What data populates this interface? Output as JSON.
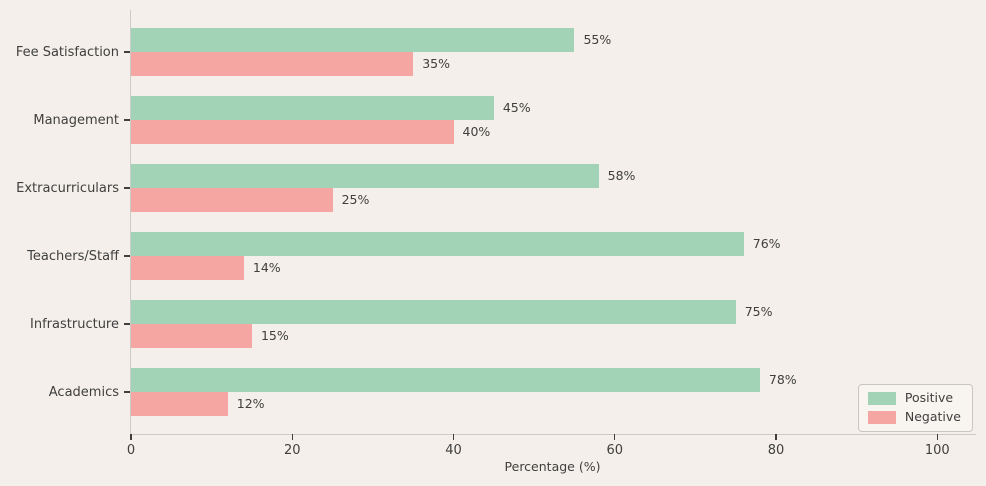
{
  "figure": {
    "background_color": "#f4efea",
    "text_color": "#3f3f3f",
    "spine_color": "#cccbc7"
  },
  "chart_data": {
    "type": "bar",
    "orientation": "horizontal",
    "title": "",
    "xlabel": "Percentage (%)",
    "ylabel": "",
    "categories": [
      "Fee Satisfaction",
      "Management",
      "Extracurriculars",
      "Teachers/Staff",
      "Infrastructure",
      "Academics"
    ],
    "series": [
      {
        "name": "Positive",
        "color": "#a3d3b6",
        "values": [
          55,
          45,
          58,
          76,
          75,
          78
        ]
      },
      {
        "name": "Negative",
        "color": "#f6a6a2",
        "values": [
          35,
          40,
          25,
          14,
          15,
          12
        ]
      }
    ],
    "value_suffix": "%",
    "x_ticks": [
      0,
      20,
      40,
      60,
      80,
      100
    ],
    "xlim": [
      0,
      104.8
    ],
    "grid": false,
    "legend": {
      "position": "lower right",
      "entries": [
        "Positive",
        "Negative"
      ]
    }
  }
}
